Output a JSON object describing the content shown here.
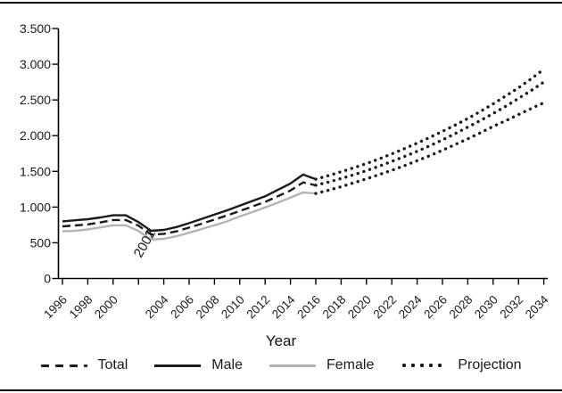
{
  "chart_data": {
    "type": "line",
    "title": "",
    "xlabel": "Year",
    "ylabel": "",
    "xlim": [
      1996,
      2034
    ],
    "ylim": [
      0,
      3500
    ],
    "grid": false,
    "legend_position": "bottom",
    "colors": {
      "line_black": "#1a1a1a",
      "line_gray": "#b4b4b4",
      "axis": "#000000"
    },
    "y_axis": {
      "ticks": [
        {
          "v": 0,
          "label": "0"
        },
        {
          "v": 500,
          "label": "500"
        },
        {
          "v": 1000,
          "label": "1.000"
        },
        {
          "v": 1500,
          "label": "1.500"
        },
        {
          "v": 2000,
          "label": "2.000"
        },
        {
          "v": 2500,
          "label": "2.500"
        },
        {
          "v": 3000,
          "label": "3.000"
        },
        {
          "v": 3500,
          "label": "3.500"
        }
      ]
    },
    "x_axis": {
      "ticks": [
        {
          "year": 1996,
          "label": "1996"
        },
        {
          "year": 1998,
          "label": "1998"
        },
        {
          "year": 2000,
          "label": "2000"
        },
        {
          "year": 2002,
          "label": ""
        },
        {
          "year": 2004,
          "label": "2004"
        },
        {
          "year": 2006,
          "label": "2006"
        },
        {
          "year": 2008,
          "label": "2008"
        },
        {
          "year": 2010,
          "label": "2010"
        },
        {
          "year": 2012,
          "label": "2012"
        },
        {
          "year": 2014,
          "label": "2014"
        },
        {
          "year": 2016,
          "label": "2016"
        },
        {
          "year": 2018,
          "label": "2018"
        },
        {
          "year": 2020,
          "label": "2020"
        },
        {
          "year": 2022,
          "label": "2022"
        },
        {
          "year": 2024,
          "label": "2024"
        },
        {
          "year": 2026,
          "label": "2026"
        },
        {
          "year": 2028,
          "label": "2028"
        },
        {
          "year": 2030,
          "label": "2030"
        },
        {
          "year": 2032,
          "label": "2032"
        },
        {
          "year": 2034,
          "label": "2034"
        }
      ]
    },
    "annotations": [
      {
        "text": "2002",
        "x": 2002.2,
        "y": 280,
        "rotation_deg": -60,
        "note": "displaced tick label drawn inside plot at the dip"
      }
    ],
    "series": [
      {
        "name": "Female",
        "style": "solid",
        "color": "#b4b4b4",
        "x": [
          1996,
          1997,
          1998,
          1999,
          2000,
          2001,
          2002,
          2003,
          2004,
          2005,
          2006,
          2007,
          2008,
          2009,
          2010,
          2011,
          2012,
          2013,
          2014,
          2015,
          2016
        ],
        "values": [
          660,
          668,
          688,
          715,
          745,
          745,
          665,
          545,
          555,
          592,
          640,
          692,
          745,
          800,
          868,
          930,
          995,
          1062,
          1132,
          1205,
          1190
        ]
      },
      {
        "name": "Total",
        "style": "dashed",
        "color": "#1a1a1a",
        "x": [
          1996,
          1997,
          1998,
          1999,
          2000,
          2001,
          2002,
          2003,
          2004,
          2005,
          2006,
          2007,
          2008,
          2009,
          2010,
          2011,
          2012,
          2013,
          2014,
          2015,
          2016
        ],
        "values": [
          730,
          742,
          758,
          785,
          818,
          818,
          740,
          615,
          625,
          660,
          712,
          768,
          825,
          883,
          945,
          1008,
          1072,
          1152,
          1232,
          1345,
          1305
        ]
      },
      {
        "name": "Male",
        "style": "solid",
        "color": "#1a1a1a",
        "x": [
          1996,
          1997,
          1998,
          1999,
          2000,
          2001,
          2002,
          2003,
          2004,
          2005,
          2006,
          2007,
          2008,
          2009,
          2010,
          2011,
          2012,
          2013,
          2014,
          2015,
          2016
        ],
        "values": [
          800,
          815,
          830,
          855,
          885,
          885,
          790,
          668,
          680,
          720,
          775,
          835,
          895,
          955,
          1020,
          1085,
          1150,
          1240,
          1330,
          1455,
          1390
        ]
      },
      {
        "name": "Female projection",
        "style": "dotted",
        "color": "#1a1a1a",
        "x": [
          2016,
          2017,
          2018,
          2019,
          2020,
          2021,
          2022,
          2023,
          2024,
          2025,
          2026,
          2027,
          2028,
          2029,
          2030,
          2031,
          2032,
          2033,
          2034
        ],
        "values": [
          1190,
          1235,
          1285,
          1340,
          1395,
          1455,
          1515,
          1580,
          1650,
          1720,
          1795,
          1875,
          1955,
          2040,
          2130,
          2210,
          2295,
          2380,
          2460
        ]
      },
      {
        "name": "Total projection",
        "style": "dotted",
        "color": "#1a1a1a",
        "x": [
          2016,
          2017,
          2018,
          2019,
          2020,
          2021,
          2022,
          2023,
          2024,
          2025,
          2026,
          2027,
          2028,
          2029,
          2030,
          2031,
          2032,
          2033,
          2034
        ],
        "values": [
          1305,
          1350,
          1400,
          1452,
          1510,
          1572,
          1640,
          1708,
          1780,
          1858,
          1940,
          2028,
          2120,
          2212,
          2310,
          2412,
          2520,
          2632,
          2750
        ]
      },
      {
        "name": "Male projection",
        "style": "dotted",
        "color": "#1a1a1a",
        "x": [
          2016,
          2017,
          2018,
          2019,
          2020,
          2021,
          2022,
          2023,
          2024,
          2025,
          2026,
          2027,
          2028,
          2029,
          2030,
          2031,
          2032,
          2033,
          2034
        ],
        "values": [
          1390,
          1440,
          1495,
          1550,
          1610,
          1675,
          1745,
          1818,
          1895,
          1975,
          2060,
          2148,
          2240,
          2340,
          2445,
          2555,
          2670,
          2795,
          2930
        ]
      }
    ],
    "legend": [
      {
        "label": "Total",
        "style": "dashed",
        "color": "#1a1a1a"
      },
      {
        "label": "Male",
        "style": "solid",
        "color": "#1a1a1a"
      },
      {
        "label": "Female",
        "style": "solid",
        "color": "#b4b4b4"
      },
      {
        "label": "Projection",
        "style": "dotted",
        "color": "#1a1a1a"
      }
    ]
  }
}
